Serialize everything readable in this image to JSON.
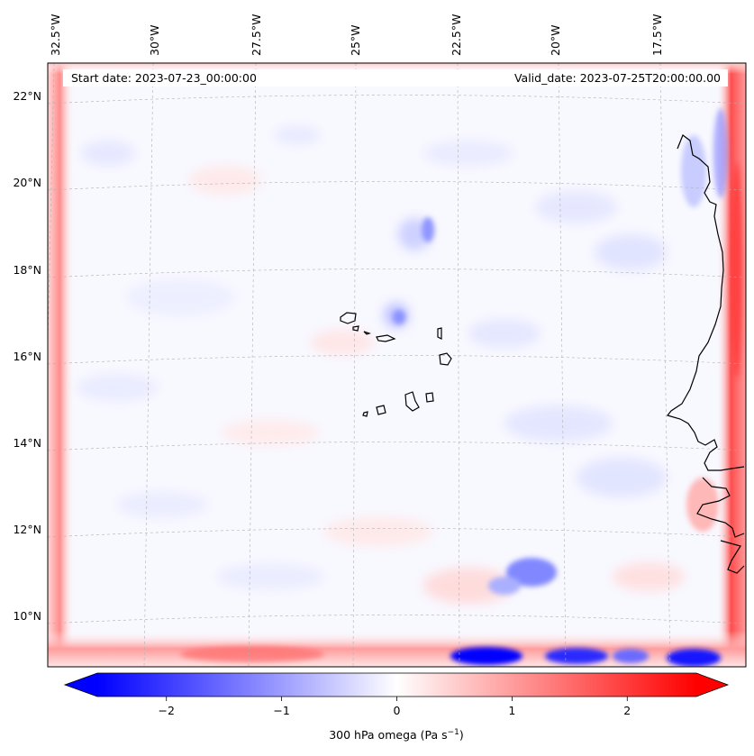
{
  "header": {
    "start_date": "Start date: 2023-07-23_00:00:00",
    "valid_date": "Valid_date: 2023-07-25T20:00:00.00"
  },
  "lon_labels": [
    "32.5°W",
    "30°W",
    "27.5°W",
    "25°W",
    "22.5°W",
    "20°W",
    "17.5°W"
  ],
  "lat_labels": [
    "22°N",
    "20°N",
    "18°N",
    "16°N",
    "14°N",
    "12°N",
    "10°N"
  ],
  "colorbar": {
    "label": "300 hPa omega (Pa s",
    "label_superscript": "−1",
    "label_close": ")",
    "ticks": [
      "−2",
      "−1",
      "0",
      "1",
      "2"
    ],
    "tick_values": [
      -2,
      -1,
      0,
      1,
      2
    ],
    "range": [
      -2.6,
      2.6
    ],
    "colormap": "bwr"
  },
  "colors": {
    "negative": "#0000ff",
    "neutral": "#ffffff",
    "positive": "#ff0000",
    "coastline": "#000000",
    "gridline": "#b0b0b0"
  },
  "map": {
    "projection": "Lambert conformal",
    "gridlines": true,
    "coastlines": true
  }
}
